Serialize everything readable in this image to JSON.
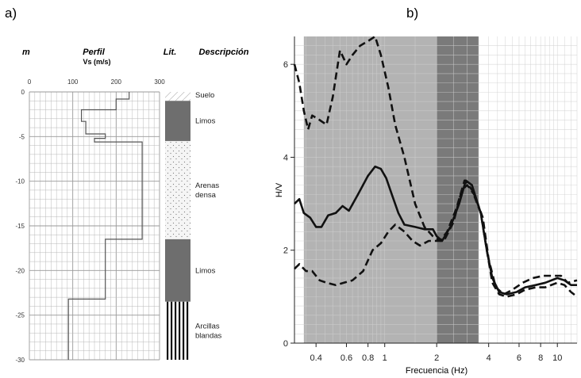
{
  "chart_data": [
    {
      "type": "line",
      "panel_label": "a)",
      "headers": {
        "depth": "m",
        "profile": "Perfil",
        "profile_unit": "Vs (m/s)",
        "lithology": "Lit.",
        "description": "Descripción"
      },
      "x_ticks": [
        "0",
        "100",
        "200",
        "300"
      ],
      "y_ticks": [
        "0",
        "-5",
        "-10",
        "-15",
        "-20",
        "-25",
        "-30"
      ],
      "xlim": [
        0,
        300
      ],
      "ylim": [
        -30,
        0
      ],
      "grid": true,
      "series": [
        {
          "values": [
            [
              230,
              0
            ],
            [
              230,
              -0.8
            ],
            [
              200,
              -0.8
            ],
            [
              200,
              -2
            ],
            [
              120,
              -2
            ],
            [
              120,
              -3.3
            ],
            [
              130,
              -3.3
            ],
            [
              130,
              -4.7
            ],
            [
              175,
              -4.7
            ],
            [
              175,
              -5.2
            ],
            [
              150,
              -5.2
            ],
            [
              150,
              -5.6
            ],
            [
              260,
              -5.6
            ],
            [
              260,
              -16.5
            ],
            [
              175,
              -16.5
            ],
            [
              175,
              -23.2
            ],
            [
              90,
              -23.2
            ],
            [
              90,
              -30
            ]
          ]
        }
      ],
      "lithology": [
        {
          "label": "Suelo",
          "top": 0,
          "bottom": -1,
          "pattern": "hatch"
        },
        {
          "label": "Limos",
          "top": -1,
          "bottom": -5.5,
          "pattern": "solid"
        },
        {
          "label": "Arenas densa",
          "top": -5.5,
          "bottom": -16.5,
          "pattern": "dots"
        },
        {
          "label": "Limos",
          "top": -16.5,
          "bottom": -23.5,
          "pattern": "solid"
        },
        {
          "label": "Arcillas blandas",
          "top": -23.5,
          "bottom": -30,
          "pattern": "stripes"
        }
      ],
      "colors": {
        "line": "#555555",
        "solid_layer": "#6e6e6e",
        "grid": "#b8b8b8"
      }
    },
    {
      "type": "line",
      "panel_label": "b)",
      "xlabel": "Frecuencia (Hz)",
      "ylabel": "H/V",
      "x_scale": "log",
      "xlim": [
        0.3,
        13
      ],
      "ylim": [
        0,
        6.6
      ],
      "x_ticks": [
        "0.4",
        "0.6",
        "0.8",
        "1",
        "2",
        "4",
        "6",
        "8",
        "10"
      ],
      "y_ticks": [
        "0",
        "2",
        "4",
        "6"
      ],
      "grid": true,
      "bands": [
        {
          "from": 0.34,
          "to": 2.0,
          "color": "#b3b3b3"
        },
        {
          "from": 2.0,
          "to": 3.5,
          "color": "#7a7a7a"
        }
      ],
      "series": [
        {
          "style": "solid",
          "values": [
            [
              0.3,
              3.0
            ],
            [
              0.32,
              3.1
            ],
            [
              0.34,
              2.8
            ],
            [
              0.37,
              2.7
            ],
            [
              0.4,
              2.5
            ],
            [
              0.43,
              2.5
            ],
            [
              0.47,
              2.75
            ],
            [
              0.52,
              2.8
            ],
            [
              0.57,
              2.95
            ],
            [
              0.62,
              2.85
            ],
            [
              0.7,
              3.2
            ],
            [
              0.8,
              3.6
            ],
            [
              0.88,
              3.8
            ],
            [
              0.95,
              3.75
            ],
            [
              1.02,
              3.55
            ],
            [
              1.1,
              3.2
            ],
            [
              1.2,
              2.8
            ],
            [
              1.3,
              2.55
            ],
            [
              1.5,
              2.5
            ],
            [
              1.7,
              2.45
            ],
            [
              1.9,
              2.45
            ],
            [
              2.0,
              2.3
            ],
            [
              2.15,
              2.2
            ],
            [
              2.4,
              2.5
            ],
            [
              2.7,
              3.0
            ],
            [
              2.95,
              3.5
            ],
            [
              3.2,
              3.4
            ],
            [
              3.6,
              2.8
            ],
            [
              3.9,
              2.0
            ],
            [
              4.2,
              1.4
            ],
            [
              4.6,
              1.1
            ],
            [
              5.1,
              1.05
            ],
            [
              5.8,
              1.1
            ],
            [
              6.5,
              1.2
            ],
            [
              7.5,
              1.25
            ],
            [
              8.5,
              1.3
            ],
            [
              10,
              1.4
            ],
            [
              11,
              1.35
            ],
            [
              12,
              1.25
            ],
            [
              13,
              1.25
            ]
          ]
        },
        {
          "style": "dashed",
          "values": [
            [
              0.3,
              6.0
            ],
            [
              0.32,
              5.6
            ],
            [
              0.34,
              5.0
            ],
            [
              0.36,
              4.6
            ],
            [
              0.38,
              4.9
            ],
            [
              0.42,
              4.8
            ],
            [
              0.46,
              4.7
            ],
            [
              0.5,
              5.3
            ],
            [
              0.55,
              6.3
            ],
            [
              0.6,
              6.0
            ],
            [
              0.65,
              6.2
            ],
            [
              0.72,
              6.4
            ],
            [
              0.8,
              6.5
            ],
            [
              0.88,
              6.6
            ],
            [
              0.95,
              6.2
            ],
            [
              1.05,
              5.5
            ],
            [
              1.15,
              4.7
            ],
            [
              1.3,
              4.0
            ],
            [
              1.5,
              3.0
            ],
            [
              1.7,
              2.5
            ],
            [
              1.9,
              2.3
            ],
            [
              2.1,
              2.2
            ],
            [
              2.3,
              2.4
            ],
            [
              2.6,
              2.9
            ],
            [
              2.9,
              3.5
            ],
            [
              3.2,
              3.3
            ],
            [
              3.6,
              2.8
            ],
            [
              3.9,
              2.0
            ],
            [
              4.2,
              1.3
            ],
            [
              4.6,
              1.05
            ],
            [
              5.1,
              1.0
            ],
            [
              5.8,
              1.05
            ],
            [
              6.5,
              1.15
            ],
            [
              7.5,
              1.2
            ],
            [
              8.5,
              1.2
            ],
            [
              10,
              1.3
            ],
            [
              11,
              1.25
            ],
            [
              12,
              1.1
            ],
            [
              13,
              1.0
            ]
          ]
        },
        {
          "style": "dashed",
          "values": [
            [
              0.3,
              1.6
            ],
            [
              0.32,
              1.7
            ],
            [
              0.35,
              1.55
            ],
            [
              0.38,
              1.55
            ],
            [
              0.42,
              1.35
            ],
            [
              0.46,
              1.3
            ],
            [
              0.52,
              1.25
            ],
            [
              0.58,
              1.3
            ],
            [
              0.65,
              1.35
            ],
            [
              0.75,
              1.55
            ],
            [
              0.85,
              2.0
            ],
            [
              0.95,
              2.15
            ],
            [
              1.05,
              2.4
            ],
            [
              1.15,
              2.55
            ],
            [
              1.3,
              2.4
            ],
            [
              1.45,
              2.2
            ],
            [
              1.6,
              2.1
            ],
            [
              1.8,
              2.2
            ],
            [
              2.0,
              2.2
            ],
            [
              2.2,
              2.2
            ],
            [
              2.5,
              2.6
            ],
            [
              2.8,
              3.3
            ],
            [
              3.0,
              3.4
            ],
            [
              3.3,
              3.2
            ],
            [
              3.7,
              2.7
            ],
            [
              4.0,
              1.8
            ],
            [
              4.4,
              1.2
            ],
            [
              4.9,
              1.05
            ],
            [
              5.5,
              1.15
            ],
            [
              6.3,
              1.3
            ],
            [
              7.2,
              1.4
            ],
            [
              8.3,
              1.45
            ],
            [
              9.5,
              1.45
            ],
            [
              10.5,
              1.45
            ],
            [
              11.5,
              1.3
            ],
            [
              13,
              1.35
            ]
          ]
        }
      ],
      "colors": {
        "line": "#111111",
        "grid": "#d0d0d0"
      }
    }
  ]
}
